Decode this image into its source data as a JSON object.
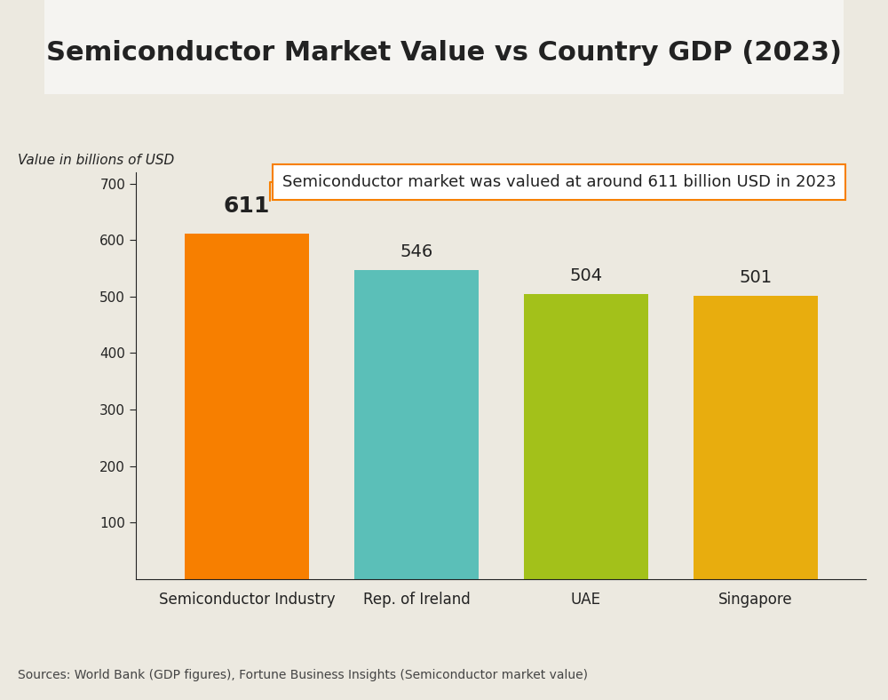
{
  "chart_data": {
    "type": "bar",
    "title": "Semiconductor Market Value vs Country GDP (2023)",
    "y_label": "Value in billions of USD",
    "annotation": "Semiconductor market was valued at around 611 billion USD in 2023",
    "source": "Sources: World Bank (GDP figures), Fortune Business Insights (Semiconductor market value)",
    "categories": [
      "Semiconductor Industry",
      "Rep. of Ireland",
      "UAE",
      "Singapore"
    ],
    "values": [
      611,
      546,
      504,
      501
    ],
    "colors": [
      "#f77f00",
      "#5bbfb8",
      "#a3c11a",
      "#e8ad0e"
    ],
    "ylim": [
      0,
      720
    ],
    "yticks": [
      100,
      200,
      300,
      400,
      500,
      600,
      700
    ],
    "data_labels": true,
    "grid": false
  }
}
